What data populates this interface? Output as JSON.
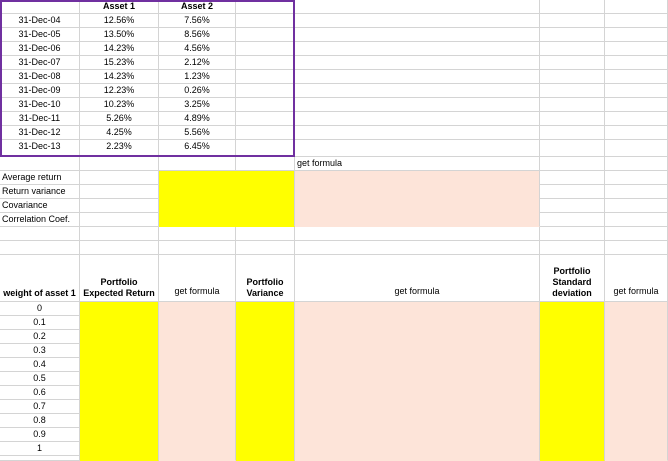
{
  "returns_table": {
    "headers": [
      "Asset 1",
      "Asset 2"
    ],
    "rows": [
      {
        "date": "31-Dec-04",
        "asset1": "12.56%",
        "asset2": "7.56%"
      },
      {
        "date": "31-Dec-05",
        "asset1": "13.50%",
        "asset2": "8.56%"
      },
      {
        "date": "31-Dec-06",
        "asset1": "14.23%",
        "asset2": "4.56%"
      },
      {
        "date": "31-Dec-07",
        "asset1": "15.23%",
        "asset2": "2.12%"
      },
      {
        "date": "31-Dec-08",
        "asset1": "14.23%",
        "asset2": "1.23%"
      },
      {
        "date": "31-Dec-09",
        "asset1": "12.23%",
        "asset2": "0.26%"
      },
      {
        "date": "31-Dec-10",
        "asset1": "10.23%",
        "asset2": "3.25%"
      },
      {
        "date": "31-Dec-11",
        "asset1": "5.26%",
        "asset2": "4.89%"
      },
      {
        "date": "31-Dec-12",
        "asset1": "4.25%",
        "asset2": "5.56%"
      },
      {
        "date": "31-Dec-13",
        "asset1": "2.23%",
        "asset2": "6.45%"
      }
    ]
  },
  "stats": {
    "note": "get formula",
    "labels": [
      "Average return",
      "Return variance",
      "Covariance",
      "Correlation Coef."
    ]
  },
  "portfolio": {
    "weight_header": "weight of asset 1",
    "expected_return_header": "Portfolio Expected Return",
    "variance_header": "Portfolio Variance",
    "stddev_header": "Portfolio Standard deviation",
    "formula_note_1": "get formula",
    "formula_note_2": "get formula",
    "formula_note_3": "get formula",
    "weights": [
      "0",
      "0.1",
      "0.2",
      "0.3",
      "0.4",
      "0.5",
      "0.6",
      "0.7",
      "0.8",
      "0.9",
      "1"
    ]
  },
  "colors": {
    "input_fill": "#ffff00",
    "formula_fill": "#fde4d9",
    "table_border": "#7030a0",
    "gridline": "#d4d4d4"
  }
}
